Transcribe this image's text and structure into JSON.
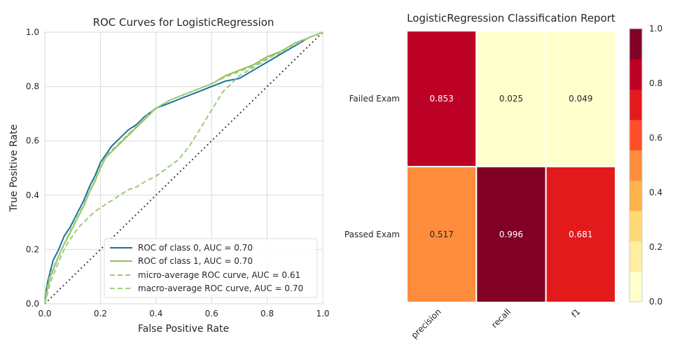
{
  "colors": {
    "class0": "#1a6fa3",
    "class1": "#8ec05a",
    "micro": "#9ec97a",
    "macro": "#a5cf7c",
    "diagonal": "#404040",
    "grid": "#d9d9d9",
    "spine": "#cccccc",
    "colorbar": [
      "#ffffcc",
      "#ffeda0",
      "#fed976",
      "#feb24c",
      "#fd8d3c",
      "#fc4e2a",
      "#e31a1c",
      "#bd0026",
      "#800026"
    ]
  },
  "chart_data": [
    {
      "type": "line",
      "title": "ROC Curves for LogisticRegression",
      "xlabel": "False Positive Rate",
      "ylabel": "True Positive Rate",
      "xlim": [
        0,
        1
      ],
      "ylim": [
        0,
        1
      ],
      "grid": true,
      "x_ticks": [
        "0.0",
        "0.2",
        "0.4",
        "0.6",
        "0.8",
        "1.0"
      ],
      "y_ticks": [
        "0.0",
        "0.2",
        "0.4",
        "0.6",
        "0.8",
        "1.0"
      ],
      "legend_position": "lower-right",
      "series": [
        {
          "name": "ROC of class 0, AUC = 0.70",
          "style": "solid",
          "color_key": "class0",
          "x": [
            0,
            0.005,
            0.01,
            0.02,
            0.03,
            0.05,
            0.07,
            0.09,
            0.1,
            0.12,
            0.14,
            0.16,
            0.18,
            0.2,
            0.22,
            0.24,
            0.27,
            0.3,
            0.33,
            0.36,
            0.4,
            0.45,
            0.5,
            0.55,
            0.6,
            0.65,
            0.7,
            0.75,
            0.8,
            0.85,
            0.9,
            0.95,
            1.0
          ],
          "y": [
            0,
            0.05,
            0.08,
            0.12,
            0.16,
            0.2,
            0.25,
            0.28,
            0.3,
            0.34,
            0.38,
            0.43,
            0.47,
            0.52,
            0.55,
            0.58,
            0.61,
            0.64,
            0.66,
            0.69,
            0.72,
            0.74,
            0.76,
            0.78,
            0.8,
            0.82,
            0.83,
            0.86,
            0.89,
            0.92,
            0.95,
            0.98,
            1.0
          ]
        },
        {
          "name": "ROC of class 1, AUC = 0.70",
          "style": "solid",
          "color_key": "class1",
          "x": [
            0,
            0.005,
            0.01,
            0.02,
            0.04,
            0.06,
            0.08,
            0.1,
            0.12,
            0.14,
            0.16,
            0.18,
            0.2,
            0.22,
            0.25,
            0.28,
            0.31,
            0.34,
            0.37,
            0.4,
            0.45,
            0.5,
            0.55,
            0.6,
            0.65,
            0.7,
            0.75,
            0.8,
            0.85,
            0.9,
            0.95,
            1.0
          ],
          "y": [
            0,
            0.03,
            0.06,
            0.1,
            0.15,
            0.2,
            0.24,
            0.28,
            0.32,
            0.36,
            0.41,
            0.45,
            0.5,
            0.54,
            0.57,
            0.6,
            0.63,
            0.66,
            0.69,
            0.72,
            0.75,
            0.77,
            0.79,
            0.81,
            0.84,
            0.86,
            0.88,
            0.91,
            0.93,
            0.96,
            0.98,
            1.0
          ]
        },
        {
          "name": "micro-average ROC curve, AUC = 0.61",
          "style": "dashed",
          "color_key": "micro",
          "x": [
            0,
            0.01,
            0.02,
            0.04,
            0.06,
            0.08,
            0.1,
            0.12,
            0.15,
            0.18,
            0.21,
            0.24,
            0.27,
            0.3,
            0.33,
            0.36,
            0.4,
            0.44,
            0.48,
            0.52,
            0.55,
            0.58,
            0.61,
            0.64,
            0.67,
            0.7,
            0.75,
            0.8,
            0.85,
            0.9,
            0.95,
            1.0
          ],
          "y": [
            0,
            0.04,
            0.08,
            0.13,
            0.18,
            0.22,
            0.25,
            0.28,
            0.31,
            0.34,
            0.36,
            0.38,
            0.4,
            0.42,
            0.43,
            0.45,
            0.47,
            0.5,
            0.53,
            0.58,
            0.63,
            0.68,
            0.73,
            0.78,
            0.81,
            0.84,
            0.87,
            0.9,
            0.93,
            0.96,
            0.98,
            1.0
          ]
        },
        {
          "name": "macro-average ROC curve, AUC = 0.70",
          "style": "dashed",
          "color_key": "macro",
          "x": [
            0,
            0.005,
            0.01,
            0.02,
            0.04,
            0.06,
            0.08,
            0.1,
            0.12,
            0.14,
            0.16,
            0.18,
            0.2,
            0.22,
            0.25,
            0.28,
            0.31,
            0.34,
            0.37,
            0.4,
            0.45,
            0.5,
            0.55,
            0.6,
            0.65,
            0.7,
            0.75,
            0.8,
            0.85,
            0.9,
            0.95,
            1.0
          ],
          "y": [
            0,
            0.035,
            0.065,
            0.11,
            0.155,
            0.2,
            0.245,
            0.285,
            0.325,
            0.365,
            0.415,
            0.455,
            0.505,
            0.545,
            0.575,
            0.605,
            0.635,
            0.665,
            0.695,
            0.72,
            0.75,
            0.77,
            0.79,
            0.81,
            0.835,
            0.855,
            0.875,
            0.905,
            0.925,
            0.955,
            0.98,
            1.0
          ]
        }
      ],
      "reference_line": {
        "style": "dotted",
        "from": [
          0,
          0
        ],
        "to": [
          1,
          1
        ]
      }
    },
    {
      "type": "heatmap",
      "title": "LogisticRegression Classification Report",
      "rows": [
        "Failed Exam",
        "Passed Exam"
      ],
      "columns": [
        "precision",
        "recall",
        "f1"
      ],
      "values": [
        [
          0.853,
          0.025,
          0.049
        ],
        [
          0.517,
          0.996,
          0.681
        ]
      ],
      "value_labels": [
        [
          "0.853",
          "0.025",
          "0.049"
        ],
        [
          "0.517",
          "0.996",
          "0.681"
        ]
      ],
      "colorbar": {
        "range": [
          0.0,
          1.0
        ],
        "ticks": [
          "0.0",
          "0.2",
          "0.4",
          "0.6",
          "0.8",
          "1.0"
        ],
        "bins": 9
      }
    }
  ]
}
